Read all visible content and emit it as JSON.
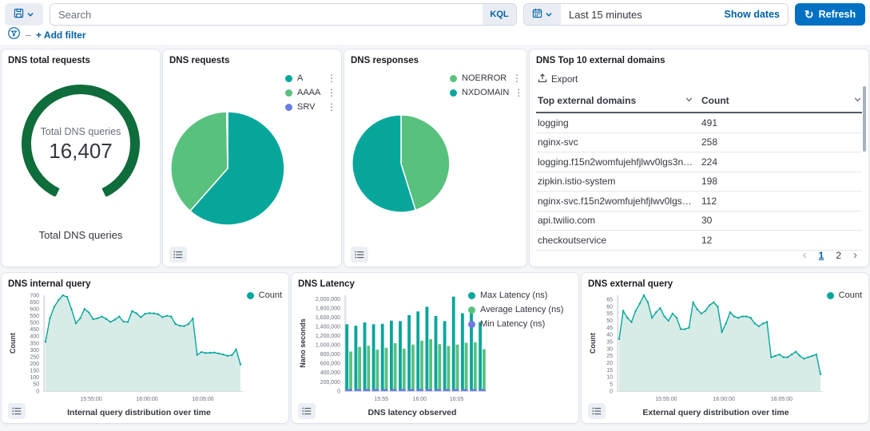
{
  "topbar": {
    "search_placeholder": "Search",
    "kql_label": "KQL",
    "time_range": "Last 15 minutes",
    "show_dates_label": "Show dates",
    "refresh_label": "Refresh"
  },
  "filter_bar": {
    "add_filter_label": "+ Add filter"
  },
  "colors": {
    "teal": "#07a69b",
    "green": "#58c17e",
    "purple": "#6b7ce0",
    "gauge_green": "#0e6d3a",
    "link_blue": "#0061a6",
    "button_blue": "#0071c2",
    "area_fill": "#d7ebe7"
  },
  "panels": {
    "total_requests": {
      "title": "DNS total requests",
      "center_label": "Total DNS queries",
      "value": "16,407",
      "bottom_label": "Total DNS queries",
      "chart_data": {
        "type": "gauge",
        "fraction": 0.86,
        "color": "#0e6d3a"
      }
    },
    "requests_pie": {
      "title": "DNS requests",
      "legend": [
        {
          "label": "A",
          "color": "#07a69b"
        },
        {
          "label": "AAAA",
          "color": "#58c17e"
        },
        {
          "label": "SRV",
          "color": "#6b7ce0"
        }
      ],
      "chart_data": {
        "type": "pie",
        "slices": [
          {
            "label": "A",
            "value": 61.5,
            "color": "#07a69b"
          },
          {
            "label": "AAAA",
            "value": 38.2,
            "color": "#58c17e"
          },
          {
            "label": "SRV",
            "value": 0.3,
            "color": "#6b7ce0"
          }
        ]
      }
    },
    "responses_pie": {
      "title": "DNS responses",
      "legend": [
        {
          "label": "NOERROR",
          "color": "#58c17e"
        },
        {
          "label": "NXDOMAIN",
          "color": "#07a69b"
        }
      ],
      "chart_data": {
        "type": "pie",
        "slices": [
          {
            "label": "NOERROR",
            "value": 45.2,
            "color": "#58c17e"
          },
          {
            "label": "NXDOMAIN",
            "value": 54.8,
            "color": "#07a69b"
          }
        ]
      }
    },
    "domains_table": {
      "title": "DNS Top 10 external domains",
      "export_label": "Export",
      "columns": [
        "Top external domains",
        "Count"
      ],
      "rows": [
        [
          "logging",
          "491"
        ],
        [
          "nginx-svc",
          "258"
        ],
        [
          "logging.f15n2womfujehfjlwv0lgs3nog....",
          "224"
        ],
        [
          "zipkin.istio-system",
          "198"
        ],
        [
          "nginx-svc.f15n2womfujehfjlwv0lgs3no...",
          "112"
        ],
        [
          "api.twilio.com",
          "30"
        ],
        [
          "checkoutservice",
          "12"
        ]
      ],
      "pagination": {
        "prev": "‹",
        "pages": [
          "1",
          "2"
        ],
        "active": "1",
        "next": "›"
      }
    },
    "internal_query": {
      "title": "DNS internal query",
      "xlabel": "Internal query distribution over time",
      "legend": [
        {
          "label": "Count",
          "color": "#07a69b"
        }
      ],
      "chart_data": {
        "type": "area",
        "ylabel": "Count",
        "ymax": 700,
        "ytickmax": 700,
        "ystep": 50,
        "ml": 44,
        "color": "#07a69b",
        "fill": "#d7ebe7",
        "values": [
          360,
          530,
          615,
          665,
          700,
          688,
          598,
          495,
          532,
          600,
          575,
          525,
          532,
          545,
          528,
          505,
          522,
          545,
          508,
          505,
          585,
          568,
          540,
          565,
          570,
          568,
          562,
          540,
          550,
          545,
          490,
          478,
          475,
          490,
          530,
          265,
          285,
          278,
          280,
          282,
          275,
          268,
          258,
          262,
          305,
          195
        ],
        "xticks": [
          {
            "label": "15:55:00",
            "pos": 0.24
          },
          {
            "label": "16:00:00",
            "pos": 0.52
          },
          {
            "label": "16:05:00",
            "pos": 0.8
          }
        ]
      }
    },
    "latency": {
      "title": "DNS Latency",
      "xlabel": "DNS latency observed",
      "legend": [
        {
          "label": "Max Latency (ns)",
          "color": "#07a69b"
        },
        {
          "label": "Average Latency (ns)",
          "color": "#58c17e"
        },
        {
          "label": "Min Latency (ns)",
          "color": "#6b7ce0"
        }
      ],
      "chart_data": {
        "type": "bars",
        "ylabel": "Nano seconds",
        "ymax": 2080000,
        "ytickmax": 2000000,
        "ystep": 200000,
        "ml": 58,
        "series": [
          {
            "name": "Max Latency (ns)",
            "color": "#07a69b",
            "values": [
              1450000,
              1420000,
              1490000,
              1450000,
              1460000,
              1530000,
              1520000,
              1650000,
              1730000,
              1830000,
              1630000,
              1520000,
              2050000,
              1690000,
              1790000,
              1500000
            ]
          },
          {
            "name": "Average Latency (ns)",
            "color": "#58c17e",
            "values": [
              860000,
              960000,
              985000,
              900000,
              940000,
              1040000,
              920000,
              1010000,
              1095000,
              1130000,
              1020000,
              980000,
              1010000,
              1050000,
              1060000,
              910000
            ]
          },
          {
            "name": "Min Latency (ns)",
            "color": "#6b7ce0",
            "values": [
              15000,
              15000,
              15000,
              15000,
              15000,
              15000,
              15000,
              15000,
              15000,
              15000,
              15000,
              15000,
              15000,
              15000,
              15000,
              15000
            ]
          }
        ],
        "xticks": [
          {
            "label": "15:55",
            "pos": 0.26
          },
          {
            "label": "16:00",
            "pos": 0.53
          },
          {
            "label": "16:05",
            "pos": 0.79
          }
        ]
      }
    },
    "external_query": {
      "title": "DNS external query",
      "xlabel": "External query distribution over time",
      "legend": [
        {
          "label": "Count",
          "color": "#07a69b"
        }
      ],
      "chart_data": {
        "type": "area",
        "ylabel": "Count",
        "ymax": 68,
        "ytickmax": 65,
        "ystep": 5,
        "ml": 36,
        "color": "#07a69b",
        "fill": "#d7ebe7",
        "values": [
          37,
          57,
          52,
          49,
          57,
          62,
          68,
          63,
          52,
          56,
          59,
          53,
          50,
          55,
          52,
          44,
          44,
          45,
          63,
          58,
          55,
          57,
          61,
          63,
          60,
          42,
          48,
          56,
          53,
          52,
          53,
          53,
          52,
          48,
          46,
          48,
          49,
          24,
          25,
          26,
          24,
          24,
          26,
          28,
          25,
          23,
          24,
          25,
          26,
          12
        ],
        "xticks": [
          {
            "label": "15:55:00",
            "pos": 0.24
          },
          {
            "label": "16:00:00",
            "pos": 0.52
          },
          {
            "label": "16:05:00",
            "pos": 0.8
          }
        ]
      }
    }
  }
}
